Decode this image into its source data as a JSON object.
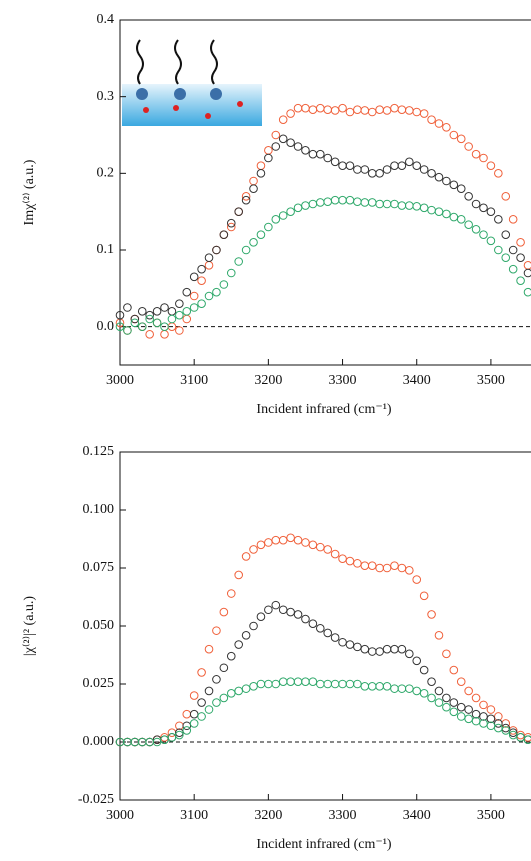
{
  "chart_data": [
    {
      "type": "scatter",
      "ylabel": "Imχ⁽²⁾ (a.u.)",
      "xlabel": "Incident infrared (cm⁻¹)",
      "xlim": [
        3000,
        3550
      ],
      "xticks": [
        3000,
        3100,
        3200,
        3300,
        3400,
        3500
      ],
      "ylim": [
        -0.05,
        0.4
      ],
      "yticks": [
        {
          "value": 0,
          "label": "0.0"
        },
        0.1,
        0.2,
        0.3,
        0.4
      ],
      "zero_line": true,
      "x": [
        3000,
        3010,
        3020,
        3030,
        3040,
        3050,
        3060,
        3070,
        3080,
        3090,
        3100,
        3110,
        3120,
        3130,
        3140,
        3150,
        3160,
        3170,
        3180,
        3190,
        3200,
        3210,
        3220,
        3230,
        3240,
        3250,
        3260,
        3270,
        3280,
        3290,
        3300,
        3310,
        3320,
        3330,
        3340,
        3350,
        3360,
        3370,
        3380,
        3390,
        3400,
        3410,
        3420,
        3430,
        3440,
        3450,
        3460,
        3470,
        3480,
        3490,
        3500,
        3510,
        3520,
        3530,
        3540,
        3550
      ],
      "series": [
        {
          "color": "#f0603a",
          "values": [
            0.005,
            -0.005,
            0.01,
            0.0,
            -0.01,
            0.005,
            -0.01,
            0.0,
            -0.005,
            0.01,
            0.04,
            0.06,
            0.08,
            0.1,
            0.12,
            0.13,
            0.15,
            0.17,
            0.19,
            0.21,
            0.23,
            0.25,
            0.27,
            0.278,
            0.285,
            0.285,
            0.283,
            0.285,
            0.283,
            0.282,
            0.285,
            0.28,
            0.283,
            0.282,
            0.28,
            0.283,
            0.282,
            0.285,
            0.283,
            0.282,
            0.28,
            0.278,
            0.27,
            0.265,
            0.26,
            0.25,
            0.245,
            0.235,
            0.225,
            0.22,
            0.21,
            0.2,
            0.17,
            0.14,
            0.11,
            0.08
          ]
        },
        {
          "color": "#333333",
          "values": [
            0.015,
            0.025,
            0.01,
            0.02,
            0.015,
            0.02,
            0.025,
            0.02,
            0.03,
            0.045,
            0.065,
            0.075,
            0.09,
            0.1,
            0.12,
            0.135,
            0.15,
            0.165,
            0.18,
            0.2,
            0.22,
            0.235,
            0.245,
            0.24,
            0.235,
            0.23,
            0.225,
            0.225,
            0.22,
            0.215,
            0.21,
            0.21,
            0.205,
            0.205,
            0.2,
            0.2,
            0.205,
            0.21,
            0.21,
            0.215,
            0.21,
            0.205,
            0.2,
            0.195,
            0.19,
            0.185,
            0.18,
            0.17,
            0.16,
            0.155,
            0.15,
            0.14,
            0.12,
            0.1,
            0.09,
            0.07
          ]
        },
        {
          "color": "#2ea86a",
          "values": [
            0.0,
            -0.005,
            0.005,
            0.0,
            0.01,
            0.005,
            0.0,
            0.01,
            0.015,
            0.02,
            0.025,
            0.03,
            0.04,
            0.045,
            0.055,
            0.07,
            0.085,
            0.1,
            0.11,
            0.12,
            0.13,
            0.14,
            0.145,
            0.15,
            0.155,
            0.158,
            0.16,
            0.162,
            0.163,
            0.165,
            0.165,
            0.165,
            0.163,
            0.162,
            0.162,
            0.16,
            0.16,
            0.16,
            0.158,
            0.158,
            0.157,
            0.155,
            0.152,
            0.15,
            0.147,
            0.143,
            0.14,
            0.133,
            0.127,
            0.12,
            0.112,
            0.1,
            0.09,
            0.075,
            0.06,
            0.045
          ]
        }
      ]
    },
    {
      "type": "scatter",
      "ylabel": "|χ⁽²⁾|² (a.u.)",
      "xlabel": "Incident infrared (cm⁻¹)",
      "xlim": [
        3000,
        3550
      ],
      "xticks": [
        3000,
        3100,
        3200,
        3300,
        3400,
        3500
      ],
      "ylim": [
        -0.025,
        0.125
      ],
      "yticks": [
        -0.025,
        {
          "value": 0,
          "label": "0.000"
        },
        0.025,
        {
          "value": 0.05,
          "label": "0.050"
        },
        0.075,
        {
          "value": 0.1,
          "label": "0.100"
        },
        0.125
      ],
      "zero_line": true,
      "x": [
        3000,
        3010,
        3020,
        3030,
        3040,
        3050,
        3060,
        3070,
        3080,
        3090,
        3100,
        3110,
        3120,
        3130,
        3140,
        3150,
        3160,
        3170,
        3180,
        3190,
        3200,
        3210,
        3220,
        3230,
        3240,
        3250,
        3260,
        3270,
        3280,
        3290,
        3300,
        3310,
        3320,
        3330,
        3340,
        3350,
        3360,
        3370,
        3380,
        3390,
        3400,
        3410,
        3420,
        3430,
        3440,
        3450,
        3460,
        3470,
        3480,
        3490,
        3500,
        3510,
        3520,
        3530,
        3540,
        3550
      ],
      "series": [
        {
          "color": "#f0603a",
          "values": [
            0,
            0,
            0,
            0,
            0,
            0.001,
            0.002,
            0.004,
            0.007,
            0.012,
            0.02,
            0.03,
            0.04,
            0.048,
            0.056,
            0.064,
            0.072,
            0.08,
            0.083,
            0.085,
            0.086,
            0.087,
            0.087,
            0.088,
            0.087,
            0.086,
            0.085,
            0.084,
            0.083,
            0.081,
            0.079,
            0.078,
            0.077,
            0.076,
            0.076,
            0.075,
            0.075,
            0.076,
            0.075,
            0.074,
            0.07,
            0.063,
            0.055,
            0.046,
            0.038,
            0.031,
            0.026,
            0.022,
            0.019,
            0.016,
            0.014,
            0.011,
            0.008,
            0.005,
            0.003,
            0.002
          ]
        },
        {
          "color": "#333333",
          "values": [
            0,
            0,
            0,
            0,
            0,
            0.001,
            0.001,
            0.002,
            0.004,
            0.007,
            0.012,
            0.017,
            0.022,
            0.027,
            0.032,
            0.037,
            0.042,
            0.046,
            0.05,
            0.054,
            0.057,
            0.059,
            0.057,
            0.056,
            0.055,
            0.053,
            0.051,
            0.049,
            0.047,
            0.045,
            0.043,
            0.042,
            0.041,
            0.04,
            0.039,
            0.039,
            0.04,
            0.04,
            0.04,
            0.038,
            0.035,
            0.031,
            0.026,
            0.022,
            0.019,
            0.017,
            0.015,
            0.014,
            0.012,
            0.011,
            0.01,
            0.008,
            0.006,
            0.004,
            0.002,
            0.001
          ]
        },
        {
          "color": "#2ea86a",
          "values": [
            0,
            0,
            0,
            0,
            0,
            0,
            0.001,
            0.002,
            0.003,
            0.005,
            0.008,
            0.011,
            0.014,
            0.017,
            0.019,
            0.021,
            0.022,
            0.023,
            0.024,
            0.025,
            0.025,
            0.025,
            0.026,
            0.026,
            0.026,
            0.026,
            0.026,
            0.025,
            0.025,
            0.025,
            0.025,
            0.025,
            0.025,
            0.024,
            0.024,
            0.024,
            0.024,
            0.023,
            0.023,
            0.023,
            0.022,
            0.021,
            0.019,
            0.017,
            0.015,
            0.013,
            0.011,
            0.01,
            0.009,
            0.008,
            0.007,
            0.006,
            0.005,
            0.003,
            0.002,
            0.001
          ]
        }
      ]
    }
  ]
}
